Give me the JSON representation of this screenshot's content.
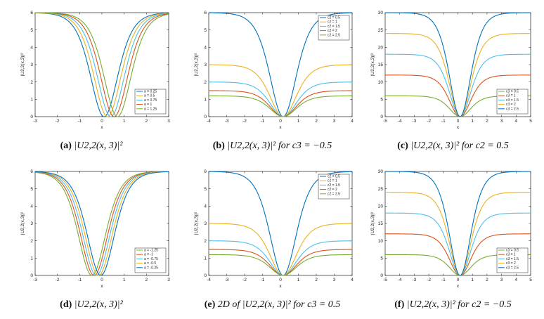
{
  "figure": {
    "captions": [
      {
        "tag": "(a)",
        "text": "|U2,2(x, 3)|²"
      },
      {
        "tag": "(b)",
        "text": "|U2,2(x, 3)|² for c3 = −0.5"
      },
      {
        "tag": "(c)",
        "text": "|U2,2(x, 3)|² for c2 = 0.5"
      },
      {
        "tag": "(d)",
        "text": "|U2,2(x, 3)|²"
      },
      {
        "tag": "(e)",
        "text": "2D of |U2,2(x, 3)|² for c3 = 0.5"
      },
      {
        "tag": "(f)",
        "text": "|U2,2(x, 3)|² for c2 = −0.5"
      }
    ]
  },
  "colors": {
    "series": [
      "#0072BD",
      "#EDB120",
      "#4DBEEE",
      "#D95319",
      "#77AC30"
    ]
  },
  "chart_data": [
    {
      "id": "a",
      "type": "line",
      "xlabel": "x",
      "ylabel": "|U2,2(x,3)|²",
      "xlim": [
        -3,
        3
      ],
      "ylim": [
        0,
        6
      ],
      "xticks": [
        -3,
        -2,
        -1,
        0,
        1,
        2,
        3
      ],
      "yticks": [
        0,
        1,
        2,
        3,
        4,
        5,
        6
      ],
      "legend_position": "bottom-right",
      "series": [
        {
          "name": "a = 0.25",
          "x0": 0.1,
          "A": 6,
          "B": 1.2,
          "color": "#0072BD"
        },
        {
          "name": "a = 0.5",
          "x0": 0.25,
          "A": 6,
          "B": 1.2,
          "color": "#EDB120"
        },
        {
          "name": "a = 0.75",
          "x0": 0.4,
          "A": 6,
          "B": 1.2,
          "color": "#4DBEEE"
        },
        {
          "name": "a = 1",
          "x0": 0.55,
          "A": 6,
          "B": 1.2,
          "color": "#D95319"
        },
        {
          "name": "a = 1.25",
          "x0": 0.7,
          "A": 6,
          "B": 1.2,
          "color": "#77AC30"
        }
      ]
    },
    {
      "id": "b",
      "type": "line",
      "xlabel": "x",
      "ylabel": "|U2,2(x,3)|²",
      "xlim": [
        -4,
        4
      ],
      "ylim": [
        0,
        6
      ],
      "xticks": [
        -4,
        -3,
        -2,
        -1,
        0,
        1,
        2,
        3,
        4
      ],
      "yticks": [
        0,
        1,
        2,
        3,
        4,
        5,
        6
      ],
      "legend_position": "top-right",
      "series": [
        {
          "name": "c2 = 0.5",
          "x0": 0.15,
          "A": 6,
          "B": 1.0,
          "color": "#0072BD"
        },
        {
          "name": "c2 = 1",
          "x0": 0.15,
          "A": 3,
          "B": 1.0,
          "color": "#EDB120"
        },
        {
          "name": "c2 = 1.5",
          "x0": 0.15,
          "A": 2,
          "B": 1.0,
          "color": "#4DBEEE"
        },
        {
          "name": "c2 = 2",
          "x0": 0.15,
          "A": 1.5,
          "B": 1.0,
          "color": "#D95319"
        },
        {
          "name": "c2 = 2.5",
          "x0": 0.15,
          "A": 1.2,
          "B": 1.0,
          "color": "#77AC30"
        }
      ]
    },
    {
      "id": "c",
      "type": "line",
      "xlabel": "x",
      "ylabel": "|U2,2(x,3)|²",
      "xlim": [
        -5,
        5
      ],
      "ylim": [
        0,
        30
      ],
      "xticks": [
        -5,
        -4,
        -3,
        -2,
        -1,
        0,
        1,
        2,
        3,
        4,
        5
      ],
      "yticks": [
        0,
        5,
        10,
        15,
        20,
        25,
        30
      ],
      "legend_position": "bottom-right",
      "series": [
        {
          "name": "c3 = 0.5",
          "x0": 0.15,
          "A": 6,
          "B": 1.0,
          "color": "#77AC30"
        },
        {
          "name": "c3 = 1",
          "x0": 0.15,
          "A": 12,
          "B": 1.0,
          "color": "#D95319"
        },
        {
          "name": "c3 = 1.5",
          "x0": 0.15,
          "A": 18,
          "B": 1.0,
          "color": "#4DBEEE"
        },
        {
          "name": "c3 = 2",
          "x0": 0.15,
          "A": 24,
          "B": 1.0,
          "color": "#EDB120"
        },
        {
          "name": "c3 = 2.5",
          "x0": 0.15,
          "A": 30,
          "B": 1.0,
          "color": "#0072BD"
        }
      ]
    },
    {
      "id": "d",
      "type": "line",
      "xlabel": "x",
      "ylabel": "|U2,2(x,3)|²",
      "xlim": [
        -3,
        3
      ],
      "ylim": [
        0,
        6
      ],
      "xticks": [
        -3,
        -2,
        -1,
        0,
        1,
        2,
        3
      ],
      "yticks": [
        0,
        1,
        2,
        3,
        4,
        5,
        6
      ],
      "legend_position": "bottom-right",
      "series": [
        {
          "name": "a = -1.25",
          "x0": -0.45,
          "A": 6,
          "B": 1.2,
          "color": "#77AC30"
        },
        {
          "name": "a = -1",
          "x0": -0.35,
          "A": 6,
          "B": 1.2,
          "color": "#D95319"
        },
        {
          "name": "a = -0.75",
          "x0": -0.25,
          "A": 6,
          "B": 1.2,
          "color": "#4DBEEE"
        },
        {
          "name": "a = -0.5",
          "x0": -0.15,
          "A": 6,
          "B": 1.2,
          "color": "#EDB120"
        },
        {
          "name": "a = -0.25",
          "x0": -0.05,
          "A": 6,
          "B": 1.2,
          "color": "#0072BD"
        }
      ]
    },
    {
      "id": "e",
      "type": "line",
      "xlabel": "x",
      "ylabel": "|U2,2(x,3)|²",
      "xlim": [
        -4,
        4
      ],
      "ylim": [
        0,
        6
      ],
      "xticks": [
        -4,
        -3,
        -2,
        -1,
        0,
        1,
        2,
        3,
        4
      ],
      "yticks": [
        0,
        1,
        2,
        3,
        4,
        5,
        6
      ],
      "legend_position": "top-right",
      "series": [
        {
          "name": "c2 = 0.5",
          "x0": 0.15,
          "A": 6,
          "B": 1.0,
          "color": "#0072BD"
        },
        {
          "name": "c2 = 1",
          "x0": 0.15,
          "A": 3,
          "B": 1.0,
          "color": "#EDB120"
        },
        {
          "name": "c2 = 1.5",
          "x0": 0.15,
          "A": 2,
          "B": 1.0,
          "color": "#4DBEEE"
        },
        {
          "name": "c2 = 2",
          "x0": 0.15,
          "A": 1.5,
          "B": 1.0,
          "color": "#D95319"
        },
        {
          "name": "c2 = 2.5",
          "x0": 0.15,
          "A": 1.2,
          "B": 1.0,
          "color": "#77AC30"
        }
      ]
    },
    {
      "id": "f",
      "type": "line",
      "xlabel": "x",
      "ylabel": "|U2,2(x,3)|²",
      "xlim": [
        -5,
        5
      ],
      "ylim": [
        0,
        30
      ],
      "xticks": [
        -5,
        -4,
        -3,
        -2,
        -1,
        0,
        1,
        2,
        3,
        4,
        5
      ],
      "yticks": [
        0,
        5,
        10,
        15,
        20,
        25,
        30
      ],
      "legend_position": "bottom-right",
      "series": [
        {
          "name": "c3 = 0.5",
          "x0": 0.15,
          "A": 6,
          "B": 1.0,
          "color": "#77AC30"
        },
        {
          "name": "c3 = 1",
          "x0": 0.15,
          "A": 12,
          "B": 1.0,
          "color": "#D95319"
        },
        {
          "name": "c3 = 1.5",
          "x0": 0.15,
          "A": 18,
          "B": 1.0,
          "color": "#4DBEEE"
        },
        {
          "name": "c3 = 2",
          "x0": 0.15,
          "A": 24,
          "B": 1.0,
          "color": "#EDB120"
        },
        {
          "name": "c3 = 2.5",
          "x0": 0.15,
          "A": 30,
          "B": 1.0,
          "color": "#0072BD"
        }
      ]
    }
  ]
}
